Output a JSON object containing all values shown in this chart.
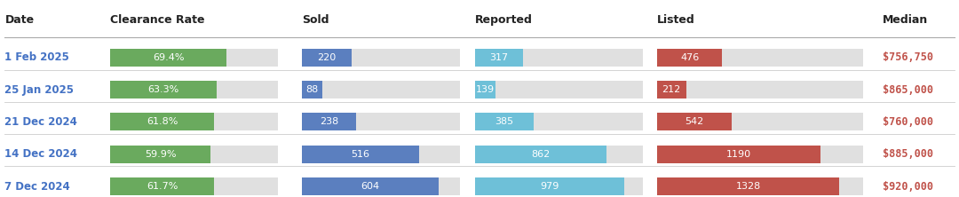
{
  "headers": [
    "Date",
    "Clearance Rate",
    "Sold",
    "Reported",
    "Listed",
    "Median"
  ],
  "rows": [
    {
      "date": "1 Feb 2025",
      "clearance_rate": 69.4,
      "sold": 220,
      "reported": 317,
      "listed": 476,
      "median": "$756,750"
    },
    {
      "date": "25 Jan 2025",
      "clearance_rate": 63.3,
      "sold": 88,
      "reported": 139,
      "listed": 212,
      "median": "$865,000"
    },
    {
      "date": "21 Dec 2024",
      "clearance_rate": 61.8,
      "sold": 238,
      "reported": 385,
      "listed": 542,
      "median": "$760,000"
    },
    {
      "date": "14 Dec 2024",
      "clearance_rate": 59.9,
      "sold": 516,
      "reported": 862,
      "listed": 1190,
      "median": "$885,000"
    },
    {
      "date": "7 Dec 2024",
      "clearance_rate": 61.7,
      "sold": 604,
      "reported": 979,
      "listed": 1328,
      "median": "$920,000"
    }
  ],
  "colors": {
    "background": "#ffffff",
    "header_text": "#222222",
    "date_text": "#4472c4",
    "clearance_bar": "#6aaa5e",
    "sold_bar": "#5b7fbf",
    "reported_bar": "#6ec0d8",
    "listed_bar": "#c0524a",
    "bar_bg": "#e0e0e0",
    "median_text": "#c0524a",
    "row_separator": "#cccccc",
    "header_separator": "#aaaaaa",
    "bar_text": "#ffffff"
  },
  "max_clearance": 100,
  "max_sold": 700,
  "max_reported": 1100,
  "max_listed": 1500,
  "col_positions": {
    "date": 0.005,
    "clearance": 0.115,
    "sold": 0.315,
    "reported": 0.495,
    "listed": 0.685,
    "median": 0.92
  },
  "col_widths": {
    "clearance": 0.175,
    "sold": 0.165,
    "reported": 0.175,
    "listed": 0.215
  },
  "header_fontsize": 9,
  "date_fontsize": 8.5,
  "bar_fontsize": 8,
  "median_fontsize": 8.5,
  "bar_height": 0.55
}
